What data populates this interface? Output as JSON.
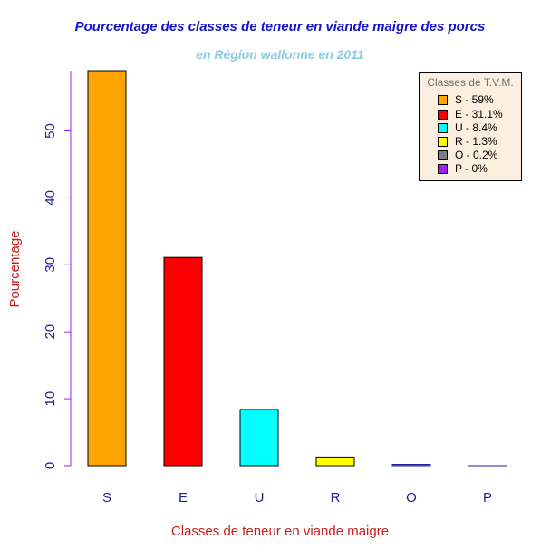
{
  "chart_data": {
    "type": "bar",
    "title": "Pourcentage des classes de teneur en viande maigre des porcs",
    "subtitle": "en Région wallonne en 2011",
    "xlabel": "Classes de teneur en viande maigre",
    "ylabel": "Pourcentage",
    "categories": [
      "S",
      "E",
      "U",
      "R",
      "O",
      "P"
    ],
    "values": [
      59,
      31.1,
      8.4,
      1.3,
      0.2,
      0
    ],
    "colors": [
      "#ffa500",
      "#ff0000",
      "#00ffff",
      "#ffff00",
      "#7f7f7f",
      "#a020f0"
    ],
    "ylim": [
      0,
      59
    ],
    "yticks": [
      0,
      10,
      20,
      30,
      40,
      50
    ],
    "legend": {
      "title": "Classes de T.V.M.",
      "position": "top-right",
      "entries": [
        "S - 59%",
        "E - 31.1%",
        "U - 8.4%",
        "R - 1.3%",
        "O - 0.2%",
        "P - 0%"
      ]
    },
    "colors_text": {
      "title": "#1414c8",
      "subtitle": "#87cde6",
      "axis_labels": "#c81e1e",
      "tick_labels": "#1e1e96",
      "axis_line": "#a020f0"
    }
  }
}
